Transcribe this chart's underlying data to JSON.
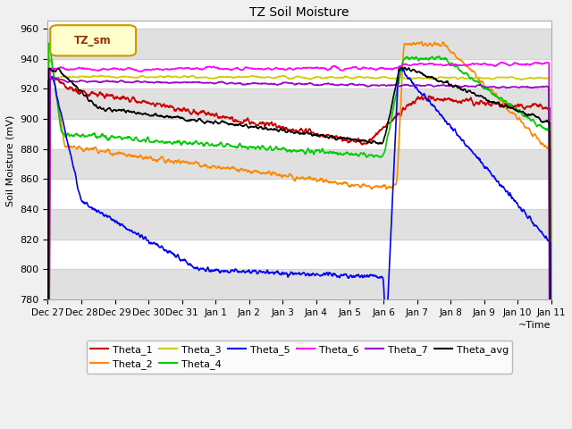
{
  "title": "TZ Soil Moisture",
  "xlabel": "Time",
  "ylabel": "Soil Moisture (mV)",
  "ylim": [
    780,
    965
  ],
  "yticks": [
    780,
    800,
    820,
    840,
    860,
    880,
    900,
    920,
    940,
    960
  ],
  "x_labels": [
    "Dec 27",
    "Dec 28",
    "Dec 29",
    "Dec 30",
    "Dec 31",
    "Jan 1",
    "Jan 2",
    "Jan 3",
    "Jan 4",
    "Jan 5",
    "Jan 6",
    "Jan 7",
    "Jan 8",
    "Jan 9",
    "Jan 10",
    "Jan 11"
  ],
  "legend_label": "TZ_sm",
  "bg_color": "#f0f0f0",
  "plot_bg_color": "#ffffff",
  "stripe_color": "#e0e0e0",
  "colors": {
    "Theta_1": "#cc0000",
    "Theta_2": "#ff8800",
    "Theta_3": "#cccc00",
    "Theta_4": "#00cc00",
    "Theta_5": "#0000ff",
    "Theta_6": "#ff00ff",
    "Theta_7": "#9900cc",
    "Theta_avg": "#000000"
  }
}
